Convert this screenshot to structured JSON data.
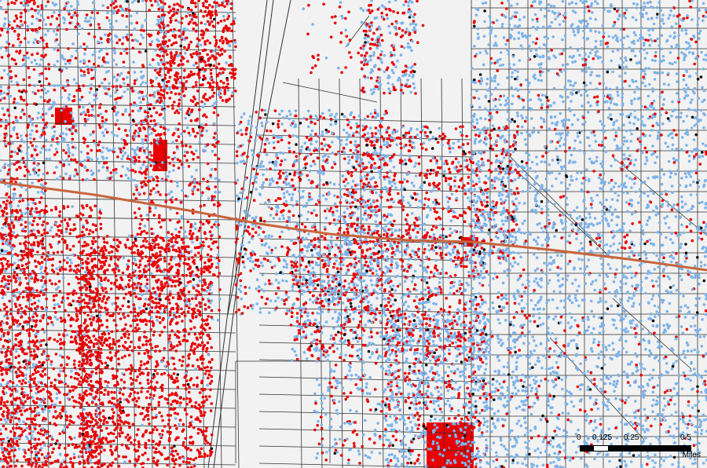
{
  "map": {
    "colors": {
      "background": "#f2f2f2",
      "street": "#333333",
      "highway": "#c8643c",
      "red": "#e80000",
      "blue": "#7db3ea",
      "black": "#111111"
    },
    "dot_categories": [
      "red-dot",
      "blue-dot",
      "black-dot"
    ]
  },
  "scale_bar": {
    "tick_0": "0",
    "tick_1": "0.125",
    "tick_2": "0.25",
    "tick_3": "0.5",
    "unit": "Miles"
  }
}
